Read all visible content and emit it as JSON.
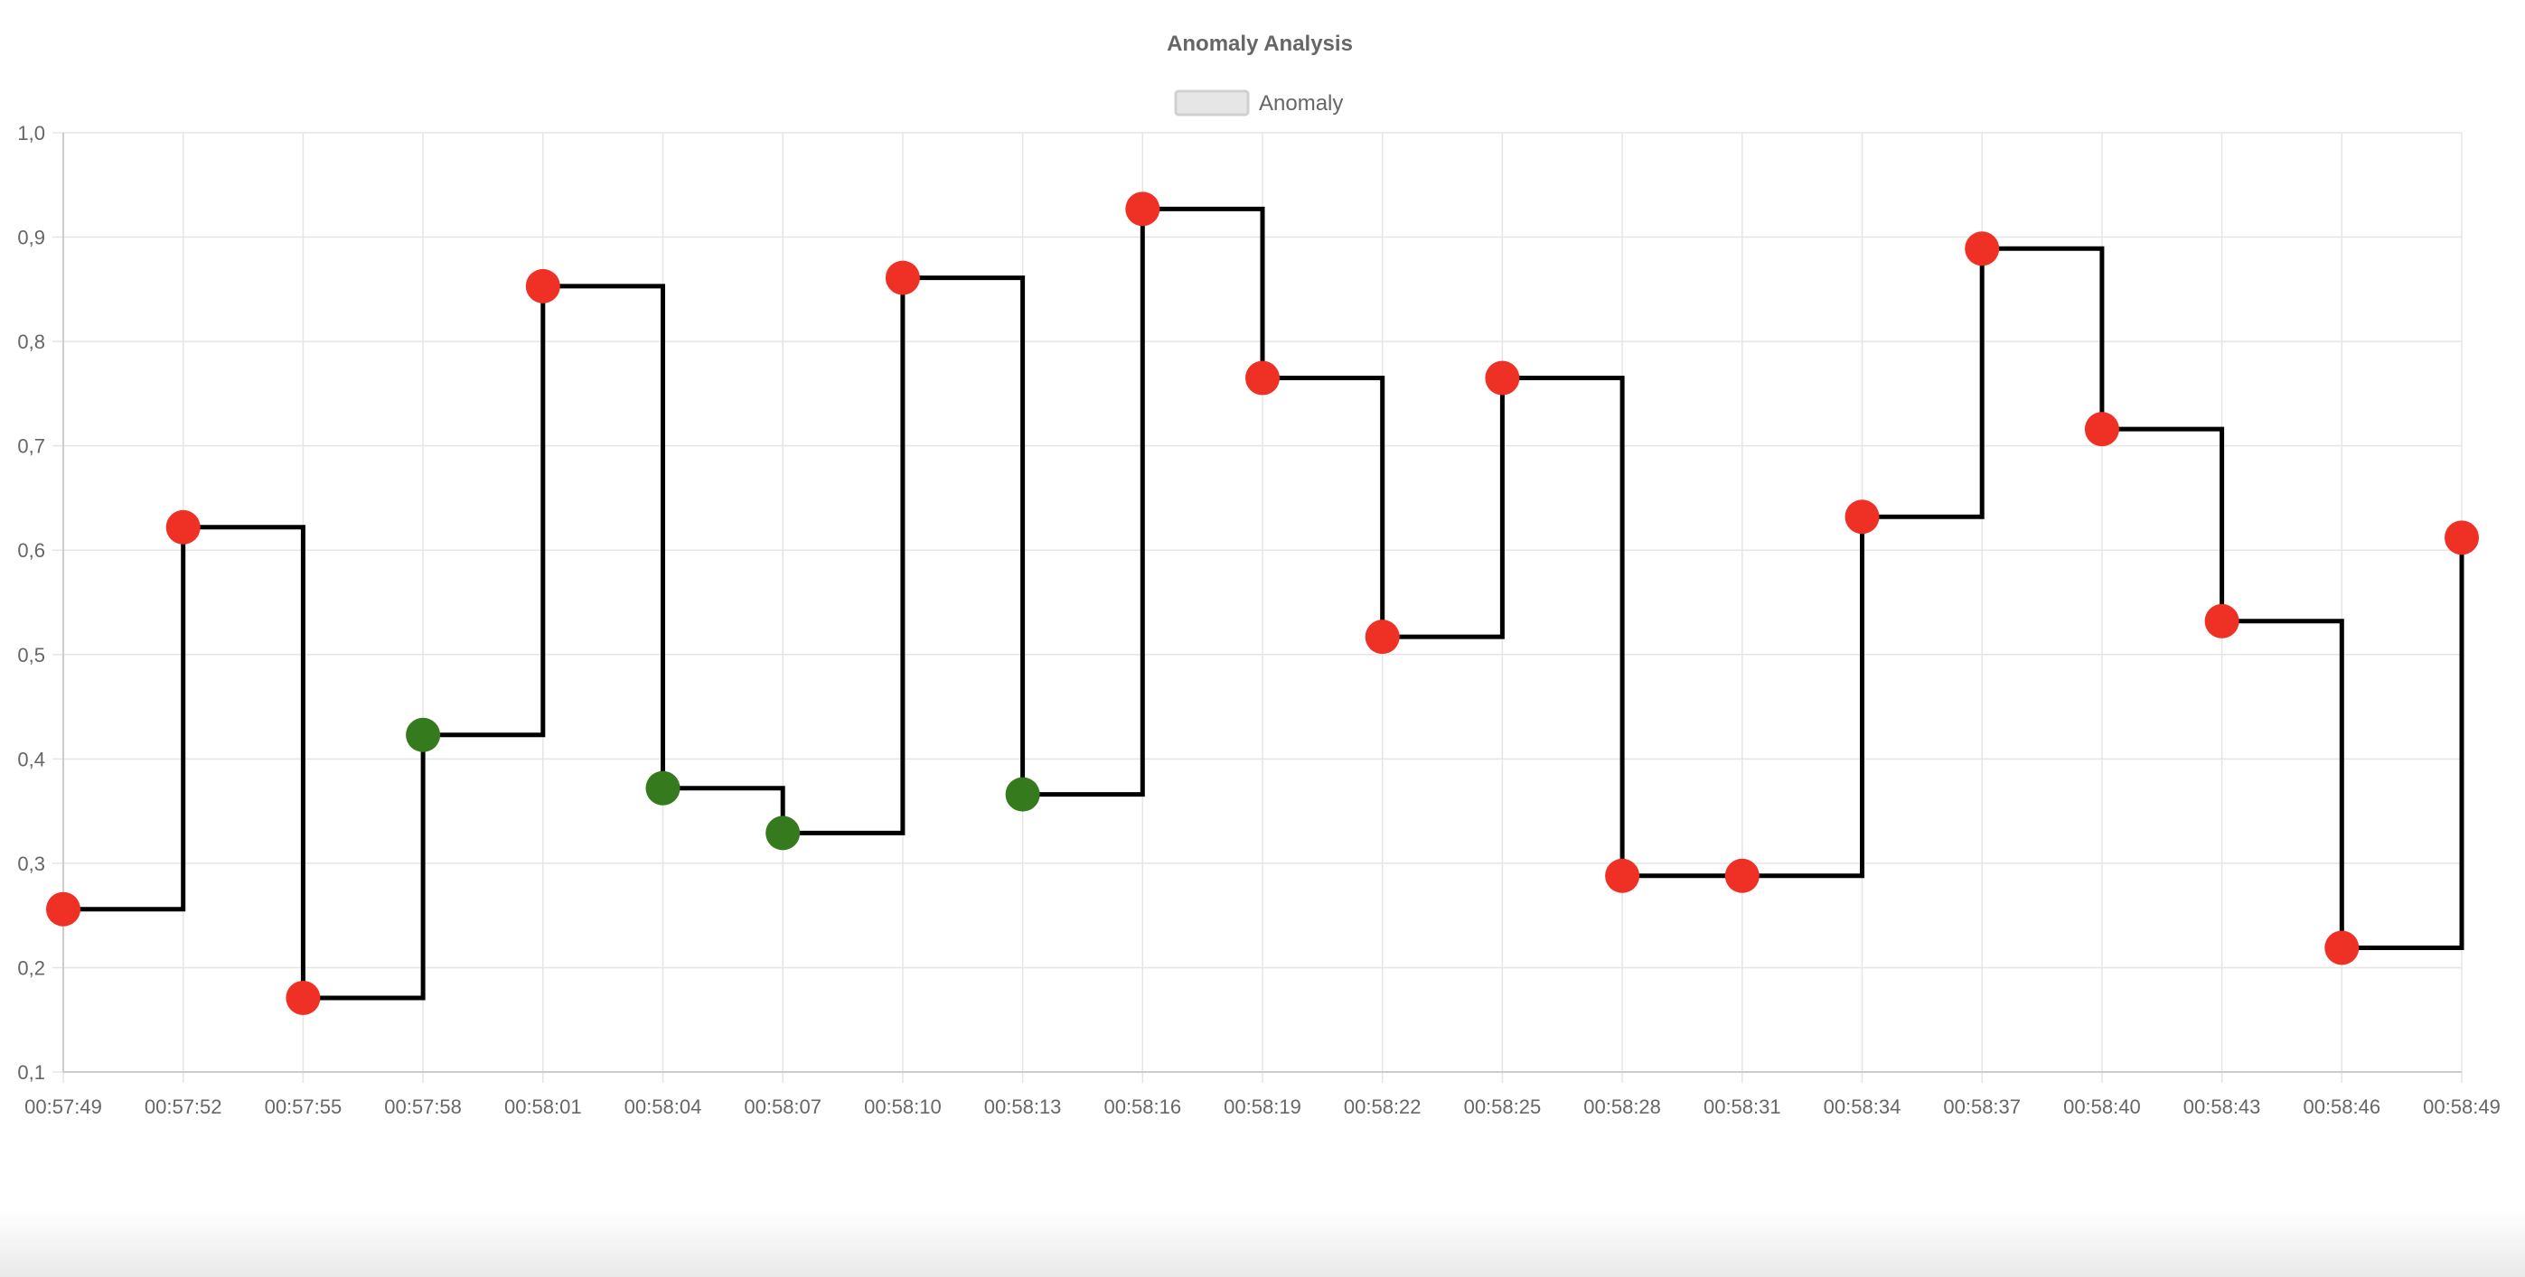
{
  "chart_data": {
    "type": "line",
    "stepped": true,
    "title": "Anomaly Analysis",
    "legend": {
      "position": "top-center",
      "entries": [
        {
          "label": "Anomaly",
          "swatch_fill": "#e6e6e6",
          "swatch_border": "#d0d0d0"
        }
      ]
    },
    "x": [
      "00:57:49",
      "00:57:52",
      "00:57:55",
      "00:57:58",
      "00:58:01",
      "00:58:04",
      "00:58:07",
      "00:58:10",
      "00:58:13",
      "00:58:16",
      "00:58:19",
      "00:58:22",
      "00:58:25",
      "00:58:28",
      "00:58:31",
      "00:58:34",
      "00:58:37",
      "00:58:40",
      "00:58:43",
      "00:58:46",
      "00:58:49"
    ],
    "series": [
      {
        "name": "Anomaly",
        "values": [
          0.256,
          0.622,
          0.171,
          0.423,
          0.853,
          0.372,
          0.329,
          0.861,
          0.366,
          0.927,
          0.765,
          0.517,
          0.765,
          0.288,
          0.288,
          0.632,
          0.889,
          0.716,
          0.532,
          0.219,
          0.612
        ],
        "point_status": [
          "red",
          "red",
          "red",
          "green",
          "red",
          "green",
          "green",
          "red",
          "green",
          "red",
          "red",
          "red",
          "red",
          "red",
          "red",
          "red",
          "red",
          "red",
          "red",
          "red",
          "red"
        ],
        "line_color": "#000000"
      }
    ],
    "point_colors": {
      "red": "#ee3124",
      "green": "#357a1c"
    },
    "ylim": [
      0.1,
      1.0
    ],
    "y_ticks": [
      "0,1",
      "0,2",
      "0,3",
      "0,4",
      "0,5",
      "0,6",
      "0,7",
      "0,8",
      "0,9",
      "1,0"
    ],
    "xlabel": "",
    "ylabel": "",
    "grid": true,
    "grid_color": "#e5e5e5",
    "axis_color": "#cccccc"
  }
}
